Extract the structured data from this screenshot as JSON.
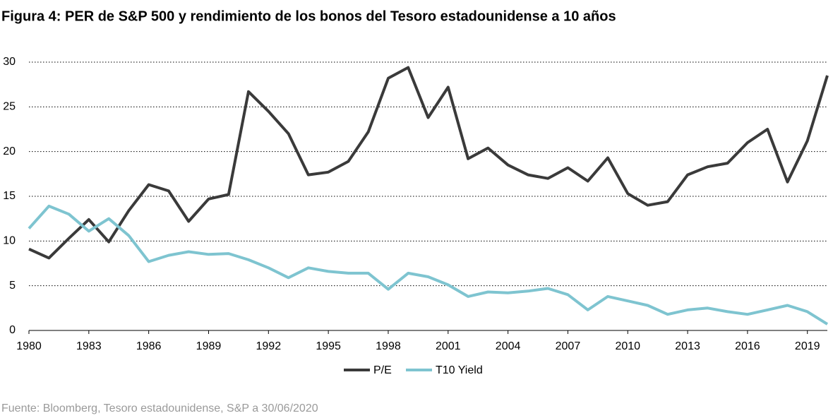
{
  "chart_data": {
    "type": "line",
    "title": "Figura 4: PER de S&P 500 y rendimiento de los bonos del Tesoro estadounidense a 10 años",
    "source": "Fuente: Bloomberg, Tesoro estadounidense, S&P a 30/06/2020",
    "x": [
      1980,
      1981,
      1982,
      1983,
      1984,
      1985,
      1986,
      1987,
      1988,
      1989,
      1990,
      1991,
      1992,
      1993,
      1994,
      1995,
      1996,
      1997,
      1998,
      1999,
      2000,
      2001,
      2002,
      2003,
      2004,
      2005,
      2006,
      2007,
      2008,
      2009,
      2010,
      2011,
      2012,
      2013,
      2014,
      2015,
      2016,
      2017,
      2018,
      2019,
      2020
    ],
    "series": [
      {
        "name": "P/E",
        "color": "#3a3a3a",
        "values": [
          9.1,
          8.1,
          10.3,
          12.4,
          9.9,
          13.4,
          16.3,
          15.6,
          12.2,
          14.7,
          15.2,
          26.7,
          24.5,
          22.0,
          17.4,
          17.7,
          18.9,
          22.2,
          28.2,
          29.4,
          23.8,
          27.2,
          19.2,
          20.4,
          18.5,
          17.4,
          17.0,
          18.2,
          16.7,
          19.3,
          15.3,
          14.0,
          14.4,
          17.4,
          18.3,
          18.7,
          21.0,
          22.5,
          16.6,
          21.2,
          28.5
        ]
      },
      {
        "name": "T10 Yield",
        "color": "#7ec4d0",
        "values": [
          11.4,
          13.9,
          13.0,
          11.1,
          12.5,
          10.6,
          7.7,
          8.4,
          8.8,
          8.5,
          8.6,
          7.9,
          7.0,
          5.9,
          7.0,
          6.6,
          6.4,
          6.4,
          4.6,
          6.4,
          6.0,
          5.1,
          3.8,
          4.3,
          4.2,
          4.4,
          4.7,
          4.0,
          2.3,
          3.8,
          3.3,
          2.8,
          1.8,
          2.3,
          2.5,
          2.1,
          1.8,
          2.3,
          2.8,
          2.1,
          0.7
        ]
      }
    ],
    "xlim": [
      1980,
      2020
    ],
    "xticks": [
      1980,
      1983,
      1986,
      1989,
      1992,
      1995,
      1998,
      2001,
      2004,
      2007,
      2010,
      2013,
      2016,
      2019
    ],
    "ylim": [
      0,
      30
    ],
    "yticks": [
      0,
      5,
      10,
      15,
      20,
      25,
      30
    ],
    "grid": true,
    "legend": "bottom"
  }
}
